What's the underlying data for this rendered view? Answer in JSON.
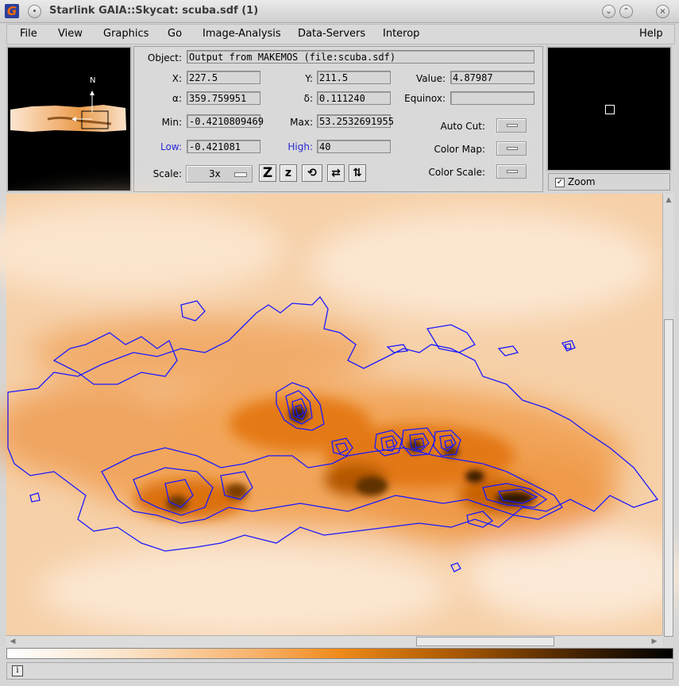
{
  "window": {
    "title": "Starlink GAIA::Skycat: scuba.sdf (1)",
    "app_icon_letter": "G"
  },
  "menubar": {
    "file": "File",
    "view": "View",
    "graphics": "Graphics",
    "go": "Go",
    "image_analysis": "Image-Analysis",
    "data_servers": "Data-Servers",
    "interop": "Interop",
    "help": "Help"
  },
  "panner": {
    "north_label": "N"
  },
  "info": {
    "object_label": "Object:",
    "object_value": "Output from MAKEMOS (file:scuba.sdf)",
    "x_label": "X:",
    "x_value": "227.5",
    "y_label": "Y:",
    "y_value": "211.5",
    "value_label": "Value:",
    "value_value": "4.87987",
    "alpha_label": "α:",
    "alpha_value": "359.759951",
    "delta_label": "δ:",
    "delta_value": "0.111240",
    "equinox_label": "Equinox:",
    "equinox_value": "",
    "min_label": "Min:",
    "min_value": "-0.4210809469",
    "max_label": "Max:",
    "max_value": "53.2532691955",
    "low_label": "Low:",
    "low_value": "-0.421081",
    "high_label": "High:",
    "high_value": "40",
    "autocut_label": "Auto Cut:",
    "colormap_label": "Color Map:",
    "colorscale_label": "Color Scale:",
    "scale_label": "Scale:",
    "scale_value": "3x"
  },
  "toolbar": {
    "zoom_in": "Z",
    "zoom_out": "z"
  },
  "zoom": {
    "label": "Zoom",
    "checked": "✓"
  },
  "colors": {
    "accent_blue": "#2a2ad8",
    "contour": "#1a1aff"
  }
}
